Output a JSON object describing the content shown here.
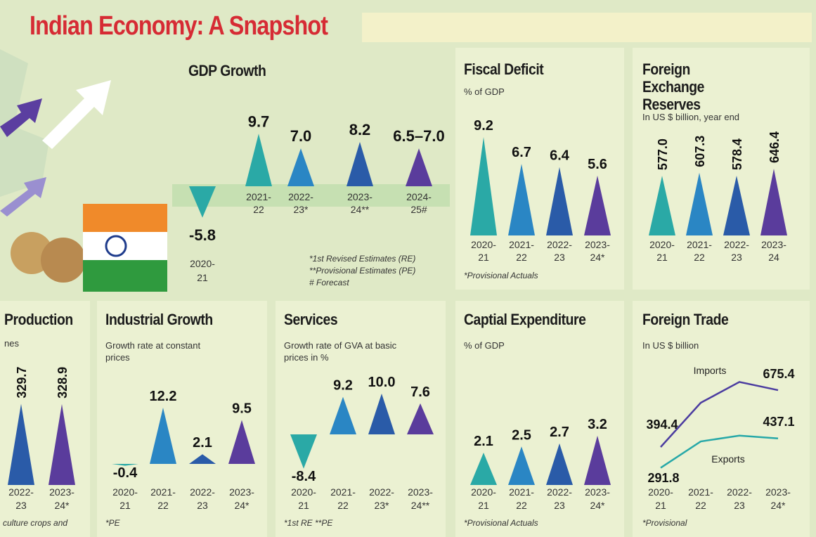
{
  "header": {
    "title": "Indian Economy: A Snapshot"
  },
  "chart_data": [
    {
      "type": "triangle",
      "title": "GDP Growth",
      "categories": [
        [
          "2020-",
          "21"
        ],
        [
          "2021-",
          "22"
        ],
        [
          "2022-",
          "23*"
        ],
        [
          "2023-",
          "24**"
        ],
        [
          "2024-",
          "25#"
        ]
      ],
      "values": [
        -5.8,
        9.7,
        7.0,
        8.2,
        7.0
      ],
      "value_labels": [
        "-5.8",
        "9.7",
        "7.0",
        "8.2",
        "6.5–7.0"
      ],
      "colors": [
        "#2aa9a6",
        "#2aa9a6",
        "#2a86c4",
        "#2a5ba8",
        "#5a3c9c"
      ],
      "notes": [
        "*1st Revised Estimates (RE)",
        "**Provisional Estimates (PE)",
        "# Forecast"
      ]
    },
    {
      "type": "triangle",
      "title": "Fiscal Deficit",
      "subtitle": "% of GDP",
      "categories": [
        [
          "2020-",
          "21"
        ],
        [
          "2021-",
          "22"
        ],
        [
          "2022-",
          "23"
        ],
        [
          "2023-",
          "24*"
        ]
      ],
      "values": [
        9.2,
        6.7,
        6.4,
        5.6
      ],
      "value_labels": [
        "9.2",
        "6.7",
        "6.4",
        "5.6"
      ],
      "colors": [
        "#2aa9a6",
        "#2a86c4",
        "#2a5ba8",
        "#5a3c9c"
      ],
      "notes": [
        "*Provisional Actuals"
      ]
    },
    {
      "type": "triangle",
      "title": "Foreign Exchange Reserves",
      "subtitle": "In US $ billion, year end",
      "categories": [
        [
          "2020-",
          "21"
        ],
        [
          "2021-",
          "22"
        ],
        [
          "2022-",
          "23"
        ],
        [
          "2023-",
          "24"
        ]
      ],
      "values": [
        577.0,
        607.3,
        578.4,
        646.4
      ],
      "value_labels": [
        "577.0",
        "607.3",
        "578.4",
        "646.4"
      ],
      "colors": [
        "#2aa9a6",
        "#2a86c4",
        "#2a5ba8",
        "#5a3c9c"
      ],
      "rotated_labels": true
    },
    {
      "type": "triangle",
      "title": "Production",
      "subtitle": "nes",
      "categories": [
        [
          "2022-",
          "23"
        ],
        [
          "2023-",
          "24*"
        ]
      ],
      "values": [
        329.7,
        328.9
      ],
      "value_labels": [
        "329.7",
        "328.9"
      ],
      "colors": [
        "#2a5ba8",
        "#5a3c9c"
      ],
      "rotated_labels": true,
      "notes": [
        "culture crops and"
      ]
    },
    {
      "type": "triangle",
      "title": "Industrial Growth",
      "subtitle": "Growth rate at constant prices",
      "categories": [
        [
          "2020-",
          "21"
        ],
        [
          "2021-",
          "22"
        ],
        [
          "2022-",
          "23"
        ],
        [
          "2023-",
          "24*"
        ]
      ],
      "values": [
        -0.4,
        12.2,
        2.1,
        9.5
      ],
      "value_labels": [
        "-0.4",
        "12.2",
        "2.1",
        "9.5"
      ],
      "colors": [
        "#2aa9a6",
        "#2a86c4",
        "#2a5ba8",
        "#5a3c9c"
      ],
      "notes": [
        "*PE"
      ]
    },
    {
      "type": "triangle",
      "title": "Services",
      "subtitle": "Growth rate of GVA at basic prices in %",
      "categories": [
        [
          "2020-",
          "21"
        ],
        [
          "2021-",
          "22"
        ],
        [
          "2022-",
          "23*"
        ],
        [
          "2023-",
          "24**"
        ]
      ],
      "values": [
        -8.4,
        9.2,
        10.0,
        7.6
      ],
      "value_labels": [
        "-8.4",
        "9.2",
        "10.0",
        "7.6"
      ],
      "colors": [
        "#2aa9a6",
        "#2a86c4",
        "#2a5ba8",
        "#5a3c9c"
      ],
      "notes": [
        "*1st RE  **PE"
      ]
    },
    {
      "type": "triangle",
      "title": "Captial Expenditure",
      "subtitle": "% of GDP",
      "categories": [
        [
          "2020-",
          "21"
        ],
        [
          "2021-",
          "22"
        ],
        [
          "2022-",
          "23"
        ],
        [
          "2023-",
          "24*"
        ]
      ],
      "values": [
        2.1,
        2.5,
        2.7,
        3.2
      ],
      "value_labels": [
        "2.1",
        "2.5",
        "2.7",
        "3.2"
      ],
      "colors": [
        "#2aa9a6",
        "#2a86c4",
        "#2a5ba8",
        "#5a3c9c"
      ],
      "notes": [
        "*Provisional Actuals"
      ]
    },
    {
      "type": "line",
      "title": "Foreign Trade",
      "subtitle": "In US $ billion",
      "categories": [
        [
          "2020-",
          "21"
        ],
        [
          "2021-",
          "22"
        ],
        [
          "2022-",
          "23"
        ],
        [
          "2023-",
          "24*"
        ]
      ],
      "series": [
        {
          "name": "Imports",
          "color": "#4b3ca0",
          "values": [
            394.4,
            613.0,
            716.0,
            675.4
          ],
          "value_labels": [
            "394.4",
            null,
            null,
            "675.4"
          ]
        },
        {
          "name": "Exports",
          "color": "#27a8a8",
          "values": [
            291.8,
            422.0,
            451.0,
            437.1
          ],
          "value_labels": [
            "291.8",
            null,
            null,
            "437.1"
          ]
        }
      ],
      "notes": [
        "*Provisional"
      ]
    }
  ]
}
